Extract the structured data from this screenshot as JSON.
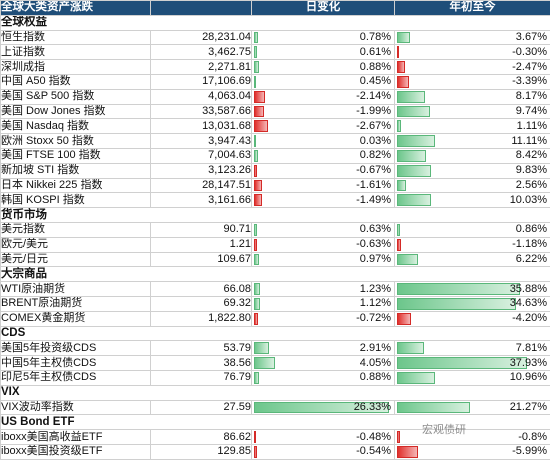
{
  "header": {
    "title": "全球大类资产涨跌",
    "col_daily": "日变化",
    "col_ytd": "年初至今"
  },
  "sections": [
    {
      "title": "全球权益",
      "rows": [
        {
          "name": "恒生指数",
          "value": "28,231.04",
          "daily": "0.78%",
          "daily_num": 0.78,
          "ytd": "3.67%",
          "ytd_num": 3.67
        },
        {
          "name": "上证指数",
          "value": "3,462.75",
          "daily": "0.61%",
          "daily_num": 0.61,
          "ytd": "-0.30%",
          "ytd_num": -0.3
        },
        {
          "name": "深圳成指",
          "value": "2,271.81",
          "daily": "0.88%",
          "daily_num": 0.88,
          "ytd": "-2.47%",
          "ytd_num": -2.47
        },
        {
          "name": "中国 A50 指数",
          "value": "17,106.69",
          "daily": "0.45%",
          "daily_num": 0.45,
          "ytd": "-3.39%",
          "ytd_num": -3.39
        },
        {
          "name": "美国 S&P 500 指数",
          "value": "4,063.04",
          "daily": "-2.14%",
          "daily_num": -2.14,
          "ytd": "8.17%",
          "ytd_num": 8.17
        },
        {
          "name": "美国 Dow Jones 指数",
          "value": "33,587.66",
          "daily": "-1.99%",
          "daily_num": -1.99,
          "ytd": "9.74%",
          "ytd_num": 9.74
        },
        {
          "name": "美国 Nasdaq 指数",
          "value": "13,031.68",
          "daily": "-2.67%",
          "daily_num": -2.67,
          "ytd": "1.11%",
          "ytd_num": 1.11
        },
        {
          "name": "欧洲 Stoxx 50 指数",
          "value": "3,947.43",
          "daily": "0.03%",
          "daily_num": 0.03,
          "ytd": "11.11%",
          "ytd_num": 11.11
        },
        {
          "name": "美国 FTSE 100 指数",
          "value": "7,004.63",
          "daily": "0.82%",
          "daily_num": 0.82,
          "ytd": "8.42%",
          "ytd_num": 8.42
        },
        {
          "name": "新加坡 STI 指数",
          "value": "3,123.26",
          "daily": "-0.67%",
          "daily_num": -0.67,
          "ytd": "9.83%",
          "ytd_num": 9.83
        },
        {
          "name": "日本 Nikkei 225 指数",
          "value": "28,147.51",
          "daily": "-1.61%",
          "daily_num": -1.61,
          "ytd": "2.56%",
          "ytd_num": 2.56
        },
        {
          "name": "韩国 KOSPI 指数",
          "value": "3,161.66",
          "daily": "-1.49%",
          "daily_num": -1.49,
          "ytd": "10.03%",
          "ytd_num": 10.03
        }
      ]
    },
    {
      "title": "货币市场",
      "rows": [
        {
          "name": "美元指数",
          "value": "90.71",
          "daily": "0.63%",
          "daily_num": 0.63,
          "ytd": "0.86%",
          "ytd_num": 0.86
        },
        {
          "name": "欧元/美元",
          "value": "1.21",
          "daily": "-0.63%",
          "daily_num": -0.63,
          "ytd": "-1.18%",
          "ytd_num": -1.18
        },
        {
          "name": "美元/日元",
          "value": "109.67",
          "daily": "0.97%",
          "daily_num": 0.97,
          "ytd": "6.22%",
          "ytd_num": 6.22
        }
      ]
    },
    {
      "title": "大宗商品",
      "rows": [
        {
          "name": "WTI原油期货",
          "value": "66.08",
          "daily": "1.23%",
          "daily_num": 1.23,
          "ytd": "35.88%",
          "ytd_num": 35.88
        },
        {
          "name": "BRENT原油期货",
          "value": "69.32",
          "daily": "1.12%",
          "daily_num": 1.12,
          "ytd": "34.63%",
          "ytd_num": 34.63
        },
        {
          "name": "COMEX黄金期货",
          "value": "1,822.80",
          "daily": "-0.72%",
          "daily_num": -0.72,
          "ytd": "-4.20%",
          "ytd_num": -4.2
        }
      ]
    },
    {
      "title": "CDS",
      "rows": [
        {
          "name": "美国5年投资级CDS",
          "value": "53.79",
          "daily": "2.91%",
          "daily_num": 2.91,
          "ytd": "7.81%",
          "ytd_num": 7.81
        },
        {
          "name": "中国5年主权债CDS",
          "value": "38.56",
          "daily": "4.05%",
          "daily_num": 4.05,
          "ytd": "37.93%",
          "ytd_num": 37.93
        },
        {
          "name": "印尼5年主权债CDS",
          "value": "76.79",
          "daily": "0.88%",
          "daily_num": 0.88,
          "ytd": "10.96%",
          "ytd_num": 10.96
        }
      ]
    },
    {
      "title": "VIX",
      "rows": [
        {
          "name": "VIX波动率指数",
          "value": "27.59",
          "daily": "26.33%",
          "daily_num": 26.33,
          "ytd": "21.27%",
          "ytd_num": 21.27
        }
      ]
    },
    {
      "title": "US Bond ETF",
      "rows": [
        {
          "name": "iboxx美国高收益ETF",
          "value": "86.62",
          "daily": "-0.48%",
          "daily_num": -0.48,
          "ytd": "-0.8%",
          "ytd_num": -0.8
        },
        {
          "name": "iboxx美国投资级ETF",
          "value": "129.85",
          "daily": "-0.54%",
          "daily_num": -0.54,
          "ytd": "-5.99%",
          "ytd_num": -5.99
        }
      ]
    }
  ],
  "watermark": "宏观债研",
  "colors": {
    "header_bg": "#1f4e79",
    "positive_bar": "#6cc68b",
    "negative_bar": "#e0302c"
  }
}
